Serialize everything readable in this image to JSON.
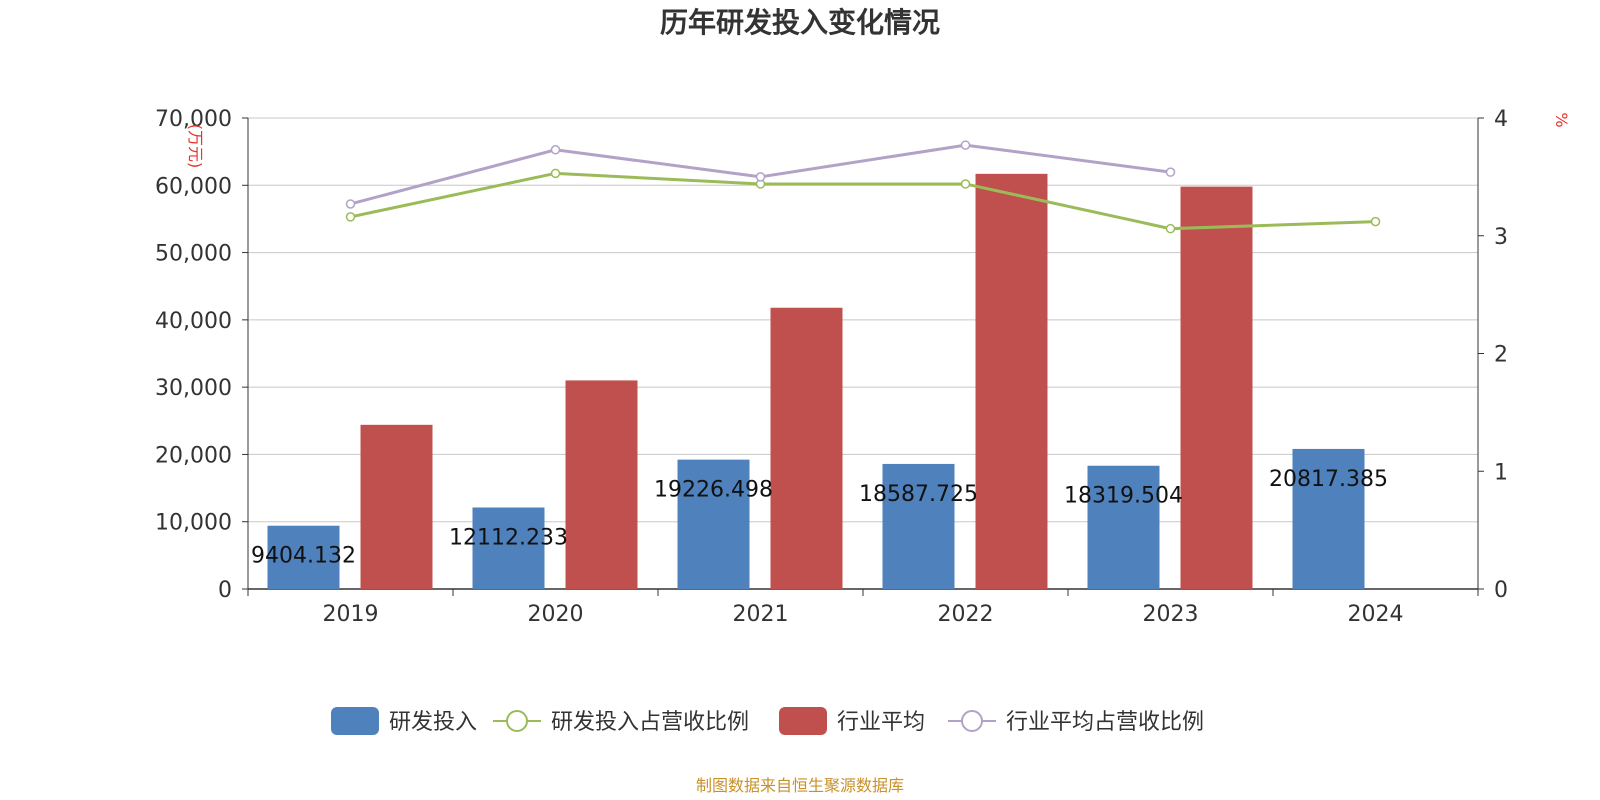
{
  "chart_data": {
    "type": "bar",
    "title": "历年研发投入变化情况",
    "categories": [
      "2019",
      "2020",
      "2021",
      "2022",
      "2023",
      "2024"
    ],
    "left_axis": {
      "unit": "(万元)",
      "ylim": [
        0,
        70000
      ],
      "ticks": [
        "0",
        "10,000",
        "20,000",
        "30,000",
        "40,000",
        "50,000",
        "60,000",
        "70,000"
      ],
      "tick_values": [
        0,
        10000,
        20000,
        30000,
        40000,
        50000,
        60000,
        70000
      ]
    },
    "right_axis": {
      "unit": "%",
      "ylim": [
        0,
        4
      ],
      "ticks": [
        "0",
        "1",
        "2",
        "3",
        "4"
      ],
      "tick_values": [
        0,
        1,
        2,
        3,
        4
      ]
    },
    "series": [
      {
        "name": "研发投入",
        "kind": "bar",
        "axis": "left",
        "color": "#4f81bd",
        "values": [
          9404.132,
          12112.233,
          19226.498,
          18587.725,
          18319.504,
          20817.385
        ],
        "labels": [
          "9404.132",
          "12112.233",
          "19226.498",
          "18587.725",
          "18319.504",
          "20817.385"
        ]
      },
      {
        "name": "研发投入占营收比例",
        "kind": "line",
        "axis": "right",
        "color": "#9bbb59",
        "values": [
          3.16,
          3.53,
          3.44,
          3.44,
          3.06,
          3.12
        ]
      },
      {
        "name": "行业平均",
        "kind": "bar",
        "axis": "left",
        "color": "#c0504d",
        "values": [
          24400,
          31000,
          41800,
          61700,
          59800,
          null
        ]
      },
      {
        "name": "行业平均占营收比例",
        "kind": "line",
        "axis": "right",
        "color": "#b3a2c7",
        "values": [
          3.27,
          3.73,
          3.5,
          3.77,
          3.54,
          null
        ]
      }
    ],
    "grid": true,
    "legend_position": "bottom",
    "source": "制图数据来自恒生聚源数据库"
  }
}
